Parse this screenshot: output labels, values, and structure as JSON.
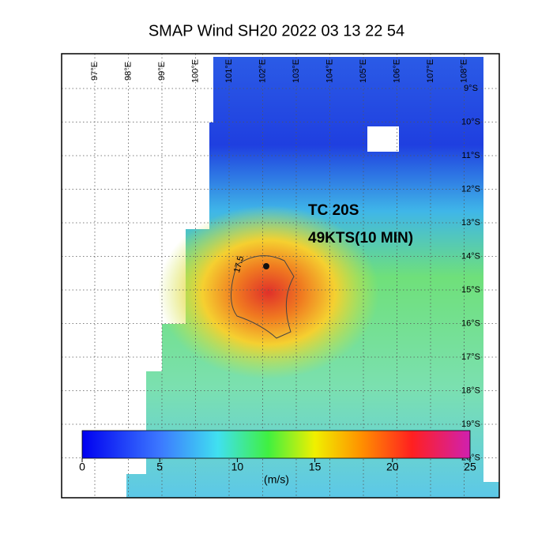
{
  "title": "SMAP Wind  SH20  2022 03 13 22 54",
  "map": {
    "longitude_labels": [
      "97°E",
      "98°E",
      "99°E",
      "100°E",
      "101°E",
      "102°E",
      "103°E",
      "104°E",
      "105°E",
      "106°E",
      "107°E",
      "108°E"
    ],
    "latitude_labels": [
      "9°S",
      "10°S",
      "11°S",
      "12°S",
      "13°S",
      "14°S",
      "15°S",
      "16°S",
      "17°S",
      "18°S",
      "19°S",
      "20°S"
    ],
    "annotation_lines": [
      "TC 20S",
      "49KTS(10 MIN)"
    ],
    "contour_label": "17.5"
  },
  "colorbar": {
    "lim": [
      0,
      25
    ],
    "ticks": [
      0,
      5,
      10,
      15,
      20,
      25
    ],
    "unit_label": "(m/s)"
  }
}
